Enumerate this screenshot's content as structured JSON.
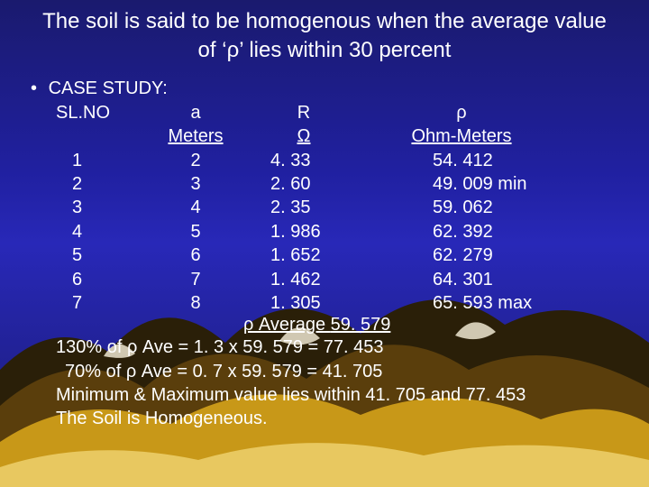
{
  "title_line1": "The soil is said to be homogenous when the average value",
  "title_line2": "of ‘ρ’ lies within 30 percent",
  "case_label": "CASE STUDY:",
  "headers": {
    "c1": "SL.NO",
    "c2": "a",
    "c3": "R",
    "c4": "ρ"
  },
  "units": {
    "c2": "Meters",
    "c3": "Ω",
    "c4": "Ohm-Meters"
  },
  "rows": [
    {
      "sl": "1",
      "a": "2",
      "r": "4. 33",
      "rho": "54. 412"
    },
    {
      "sl": "2",
      "a": "3",
      "r": "2. 60",
      "rho": "49. 009 min"
    },
    {
      "sl": "3",
      "a": "4",
      "r": "2. 35",
      "rho": "59. 062"
    },
    {
      "sl": "4",
      "a": "5",
      "r": "1. 986",
      "rho": "62. 392"
    },
    {
      "sl": "5",
      "a": "6",
      "r": "1. 652",
      "rho": "62. 279"
    },
    {
      "sl": "6",
      "a": "7",
      "r": "1. 462",
      "rho": "64. 301"
    },
    {
      "sl": "7",
      "a": "8",
      "r": "1. 305",
      "rho": "65. 593 max"
    }
  ],
  "avg_label": "ρ Average ",
  "avg_value": "59. 579",
  "notes": [
    "130% of ρ Ave = 1. 3 x 59. 579 = 77. 453",
    "70% of ρ Ave = 0. 7 x 59. 579 = 41. 705",
    "Minimum & Maximum value lies within 41. 705 and 77. 453",
    "The Soil is Homogeneous."
  ],
  "colors": {
    "text": "#ffffff",
    "bg_top": "#1a1a6e",
    "bg_mid": "#2828b8",
    "mountain_back": "#3a2a0a",
    "mountain_mid": "#6b4a10",
    "mountain_front": "#d4a020",
    "snow": "#f5f0e0"
  }
}
